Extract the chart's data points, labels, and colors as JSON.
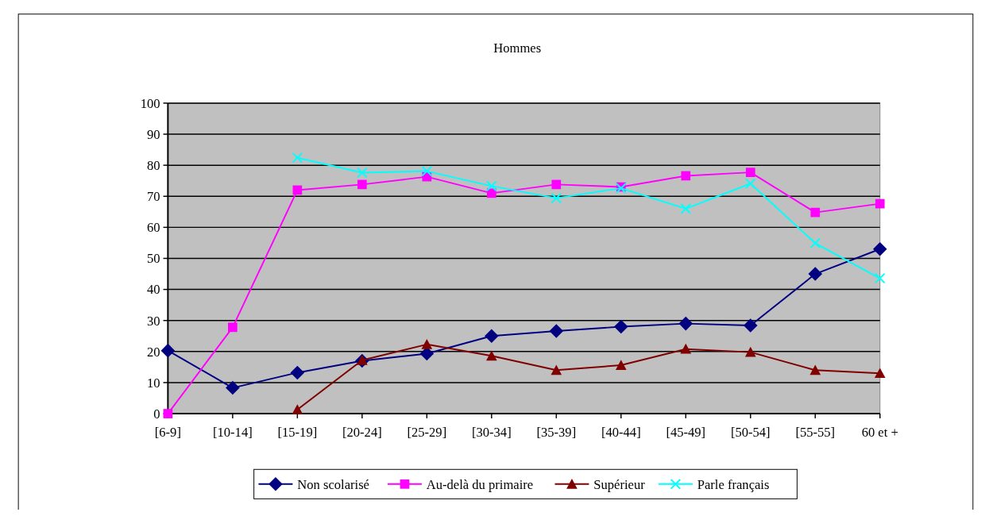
{
  "chart_data": {
    "type": "line",
    "title": "Hommes",
    "categories": [
      "[6-9]",
      "[10-14]",
      "[15-19]",
      "[20-24]",
      "[25-29]",
      "[30-34]",
      "[35-39]",
      "[40-44]",
      "[45-49]",
      "[50-54]",
      "[55-55]",
      "60 et +"
    ],
    "series": [
      {
        "name": "Non scolarisé",
        "color": "#000080",
        "marker": "diamond",
        "values": [
          20.3,
          8.3,
          13.2,
          17,
          19.3,
          25,
          26.6,
          28,
          29,
          28.4,
          45,
          53
        ]
      },
      {
        "name": "Au-delà du primaire",
        "color": "#ff00ff",
        "marker": "square",
        "values": [
          0,
          27.8,
          72,
          73.8,
          76.3,
          71,
          73.8,
          73,
          76.6,
          77.7,
          64.8,
          67.6
        ]
      },
      {
        "name": "Supérieur",
        "color": "#800000",
        "marker": "triangle",
        "values": [
          null,
          null,
          1.3,
          17.2,
          22.3,
          18.6,
          14,
          15.6,
          20.8,
          19.8,
          14,
          13
        ]
      },
      {
        "name": "Parle français",
        "color": "#00ffff",
        "marker": "cross",
        "values": [
          null,
          null,
          82.4,
          77.6,
          78.1,
          73.3,
          69.4,
          72.6,
          66,
          74.1,
          54.9,
          43.6
        ]
      }
    ],
    "ylim": [
      0,
      100
    ],
    "yticks": [
      0,
      10,
      20,
      30,
      40,
      50,
      60,
      70,
      80,
      90,
      100
    ],
    "grid": "y",
    "legend": "bottom",
    "line_style": "solid"
  }
}
